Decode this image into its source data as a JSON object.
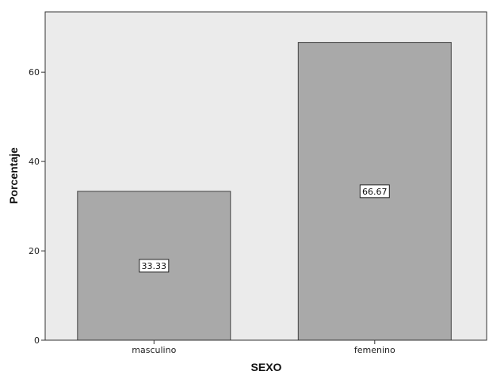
{
  "chart_data": {
    "type": "bar",
    "categories": [
      "masculino",
      "femenino"
    ],
    "values": [
      33.33,
      66.67
    ],
    "data_labels": [
      "33.33",
      "66.67"
    ],
    "xlabel": "SEXO",
    "ylabel": "Porcentaje",
    "ylim": [
      0,
      73.5
    ],
    "yticks": [
      0,
      20,
      40,
      60
    ],
    "ytick_labels": [
      "0",
      "20",
      "40",
      "60"
    ],
    "grid": false,
    "colors": {
      "plot_background": "#ebebeb",
      "bar_fill": "#a9a9a9",
      "bar_stroke": "#444444",
      "axis": "#333333"
    }
  }
}
